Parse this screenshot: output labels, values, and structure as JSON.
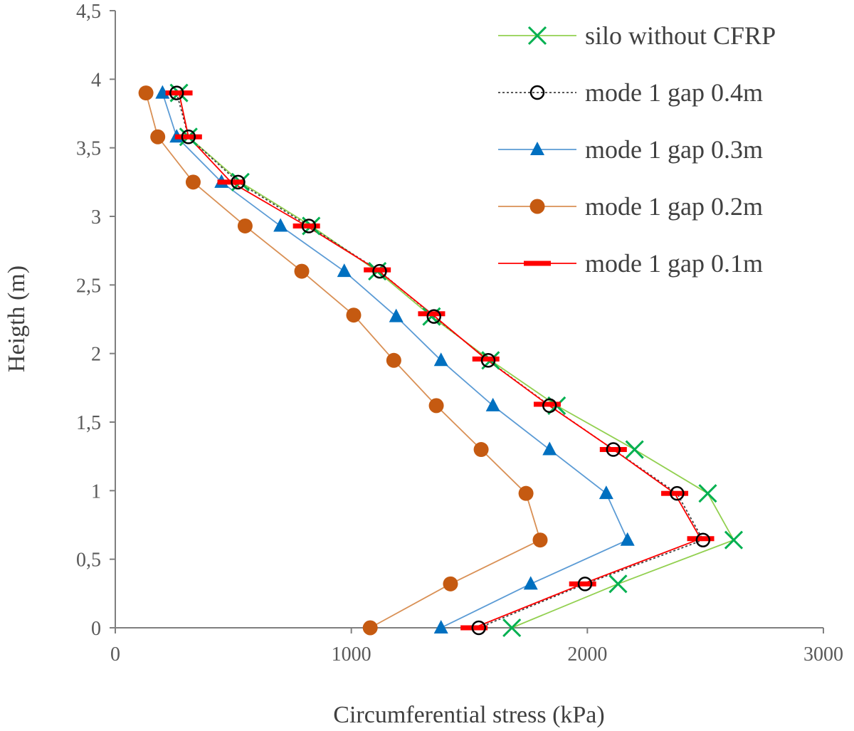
{
  "chart_data": {
    "type": "line",
    "title": "",
    "xlabel": "Circumferential stress (kPa)",
    "ylabel": "Heigth (m)",
    "xlim": [
      0,
      3000
    ],
    "ylim": [
      0,
      4.5
    ],
    "x_ticks": [
      {
        "value": 0,
        "label": "0"
      },
      {
        "value": 1000,
        "label": "1000"
      },
      {
        "value": 2000,
        "label": "2000"
      },
      {
        "value": 3000,
        "label": "3000"
      }
    ],
    "y_ticks": [
      {
        "value": 0,
        "label": "0"
      },
      {
        "value": 0.5,
        "label": "0,5"
      },
      {
        "value": 1,
        "label": "1"
      },
      {
        "value": 1.5,
        "label": "1,5"
      },
      {
        "value": 2,
        "label": "2"
      },
      {
        "value": 2.5,
        "label": "2,5"
      },
      {
        "value": 3,
        "label": "3"
      },
      {
        "value": 3.5,
        "label": "3,5"
      },
      {
        "value": 4,
        "label": "4"
      },
      {
        "value": 4.5,
        "label": "4,5"
      }
    ],
    "grid": false,
    "legend_position": "top-right",
    "series": [
      {
        "name": "silo without CFRP",
        "color": "#92D050",
        "marker": "x",
        "marker_color": "#00B050",
        "dash": "solid",
        "points": [
          [
            1680,
            0
          ],
          [
            2130,
            0.32
          ],
          [
            2620,
            0.64
          ],
          [
            2510,
            0.98
          ],
          [
            2200,
            1.3
          ],
          [
            1870,
            1.62
          ],
          [
            1590,
            1.95
          ],
          [
            1340,
            2.27
          ],
          [
            1110,
            2.6
          ],
          [
            830,
            2.93
          ],
          [
            530,
            3.25
          ],
          [
            310,
            3.58
          ],
          [
            270,
            3.9
          ]
        ]
      },
      {
        "name": "mode 1 gap 0.4m",
        "color": "#404040",
        "marker": "open-circle",
        "marker_color": "#000000",
        "dash": "dotted",
        "points": [
          [
            1540,
            0
          ],
          [
            1990,
            0.32
          ],
          [
            2490,
            0.64
          ],
          [
            2380,
            0.98
          ],
          [
            2110,
            1.3
          ],
          [
            1840,
            1.62
          ],
          [
            1580,
            1.95
          ],
          [
            1350,
            2.27
          ],
          [
            1120,
            2.6
          ],
          [
            820,
            2.93
          ],
          [
            520,
            3.25
          ],
          [
            310,
            3.58
          ],
          [
            260,
            3.9
          ]
        ]
      },
      {
        "name": "mode 1 gap 0.3m",
        "color": "#5B9BD5",
        "marker": "triangle",
        "marker_color": "#0070C0",
        "dash": "solid",
        "points": [
          [
            1380,
            0
          ],
          [
            1760,
            0.32
          ],
          [
            2170,
            0.64
          ],
          [
            2080,
            0.98
          ],
          [
            1840,
            1.3
          ],
          [
            1600,
            1.62
          ],
          [
            1380,
            1.95
          ],
          [
            1190,
            2.27
          ],
          [
            970,
            2.6
          ],
          [
            700,
            2.93
          ],
          [
            450,
            3.25
          ],
          [
            260,
            3.58
          ],
          [
            200,
            3.9
          ]
        ]
      },
      {
        "name": "mode 1 gap 0.2m",
        "color": "#D99055",
        "marker": "filled-circle",
        "marker_color": "#C55A11",
        "dash": "solid",
        "points": [
          [
            1080,
            0
          ],
          [
            1420,
            0.32
          ],
          [
            1800,
            0.64
          ],
          [
            1740,
            0.98
          ],
          [
            1550,
            1.3
          ],
          [
            1360,
            1.62
          ],
          [
            1180,
            1.95
          ],
          [
            1010,
            2.28
          ],
          [
            790,
            2.6
          ],
          [
            550,
            2.93
          ],
          [
            330,
            3.25
          ],
          [
            180,
            3.58
          ],
          [
            130,
            3.9
          ]
        ]
      },
      {
        "name": "mode 1 gap 0.1m",
        "color": "#FF0000",
        "marker": "dash",
        "marker_color": "#FF0000",
        "dash": "solid",
        "points": [
          [
            1520,
            0
          ],
          [
            1980,
            0.32
          ],
          [
            2480,
            0.65
          ],
          [
            2370,
            0.98
          ],
          [
            2110,
            1.3
          ],
          [
            1830,
            1.63
          ],
          [
            1570,
            1.96
          ],
          [
            1340,
            2.29
          ],
          [
            1110,
            2.61
          ],
          [
            810,
            2.93
          ],
          [
            490,
            3.25
          ],
          [
            310,
            3.58
          ],
          [
            270,
            3.9
          ]
        ]
      }
    ]
  }
}
